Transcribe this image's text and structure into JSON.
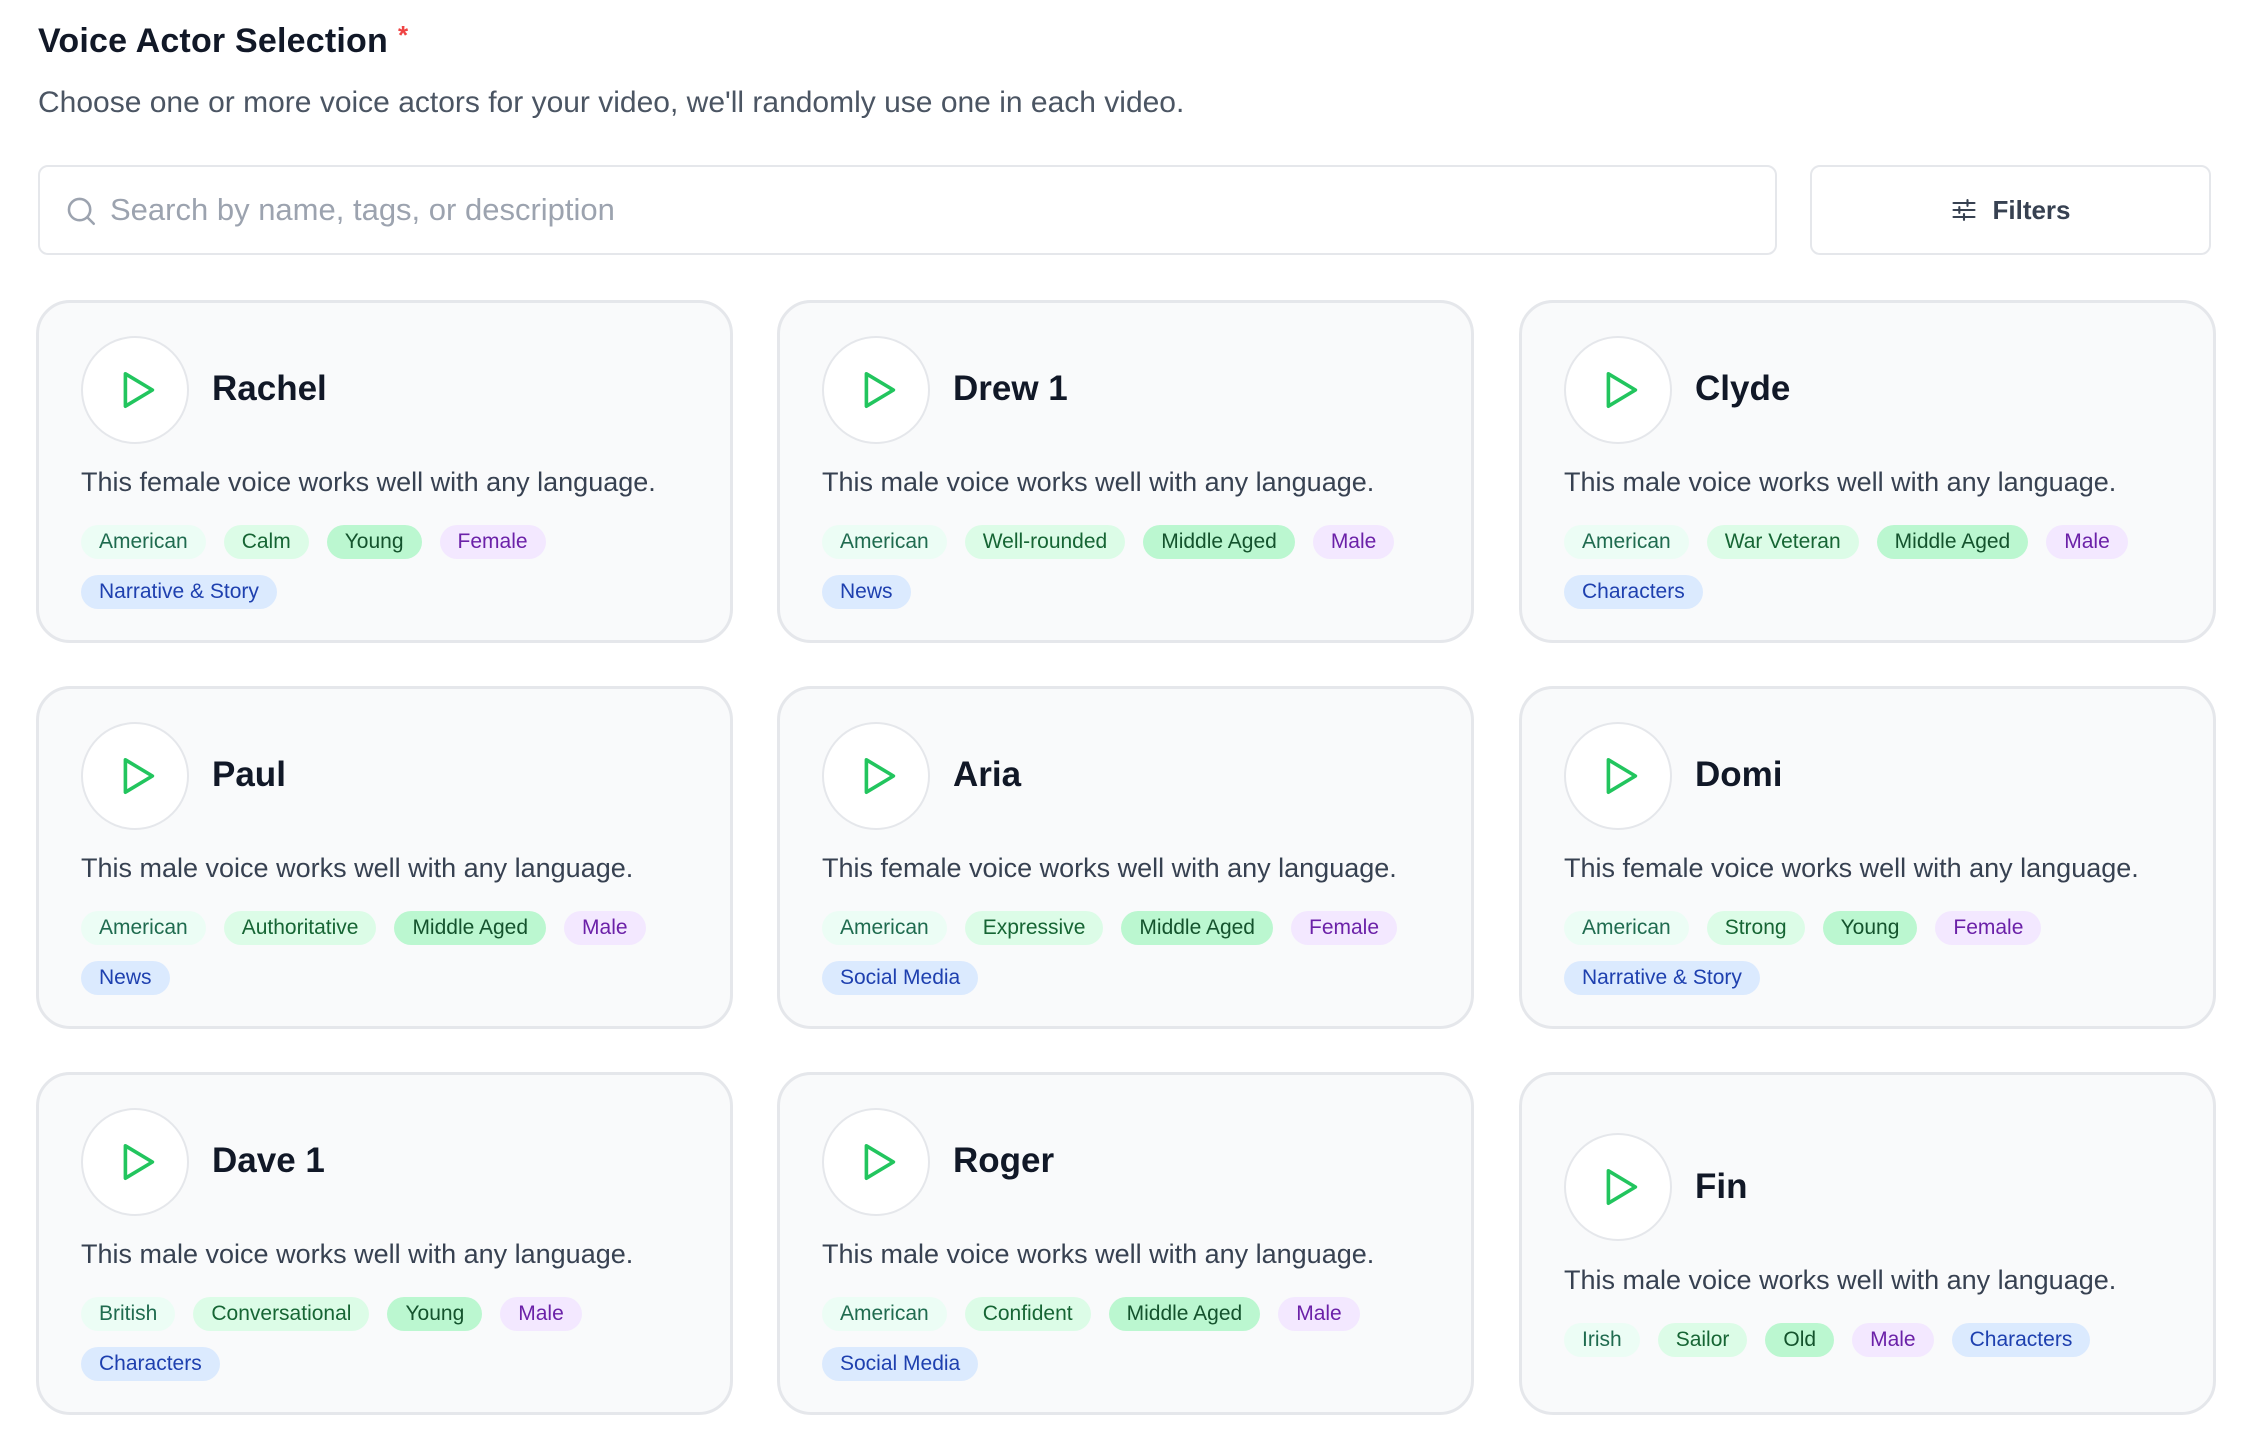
{
  "header": {
    "title": "Voice Actor Selection",
    "required_mark": "*",
    "subtitle": "Choose one or more voice actors for your video, we'll randomly use one in each video."
  },
  "search": {
    "placeholder": "Search by name, tags, or description",
    "value": ""
  },
  "filters": {
    "label": "Filters"
  },
  "icons": {
    "search": "search-icon",
    "filters": "sliders-icon",
    "play": "play-icon"
  },
  "colors": {
    "accent": "#22c55e",
    "required": "#ef4444"
  },
  "voices": [
    {
      "name": "Rachel",
      "description": "This female voice works well with any language.",
      "tags": [
        "American",
        "Calm",
        "Young",
        "Female",
        "Narrative & Story"
      ]
    },
    {
      "name": "Drew 1",
      "description": "This male voice works well with any language.",
      "tags": [
        "American",
        "Well-rounded",
        "Middle Aged",
        "Male",
        "News"
      ]
    },
    {
      "name": "Clyde",
      "description": "This male voice works well with any language.",
      "tags": [
        "American",
        "War Veteran",
        "Middle Aged",
        "Male",
        "Characters"
      ]
    },
    {
      "name": "Paul",
      "description": "This male voice works well with any language.",
      "tags": [
        "American",
        "Authoritative",
        "Middle Aged",
        "Male",
        "News"
      ]
    },
    {
      "name": "Aria",
      "description": "This female voice works well with any language.",
      "tags": [
        "American",
        "Expressive",
        "Middle Aged",
        "Female",
        "Social Media"
      ]
    },
    {
      "name": "Domi",
      "description": "This female voice works well with any language.",
      "tags": [
        "American",
        "Strong",
        "Young",
        "Female",
        "Narrative & Story"
      ]
    },
    {
      "name": "Dave 1",
      "description": "This male voice works well with any language.",
      "tags": [
        "British",
        "Conversational",
        "Young",
        "Male",
        "Characters"
      ]
    },
    {
      "name": "Roger",
      "description": "This male voice works well with any language.",
      "tags": [
        "American",
        "Confident",
        "Middle Aged",
        "Male",
        "Social Media"
      ]
    },
    {
      "name": "Fin",
      "description": "This male voice works well with any language.",
      "tags": [
        "Irish",
        "Sailor",
        "Old",
        "Male",
        "Characters"
      ]
    }
  ]
}
